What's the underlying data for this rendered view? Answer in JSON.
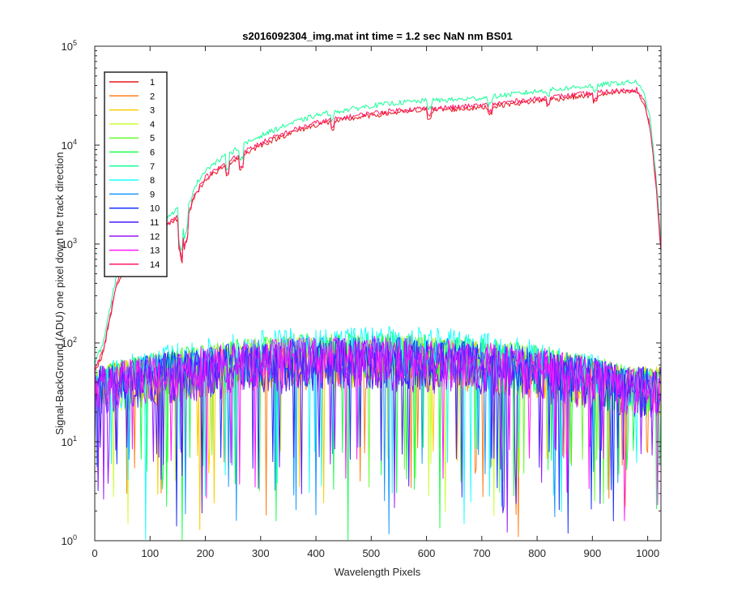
{
  "chart_data": {
    "type": "line",
    "title": "s2016092304_img.mat int time = 1.2 sec  NaN nm BS01",
    "xlabel": "Wavelength Pixels",
    "ylabel": "Signal-BackGround (ADU) one pixel down the track direction",
    "xlim": [
      0,
      1024
    ],
    "ylim": [
      1,
      100000
    ],
    "yscale": "log",
    "x_ticks": [
      0,
      100,
      200,
      300,
      400,
      500,
      600,
      700,
      800,
      900,
      1000
    ],
    "y_ticks": [
      {
        "value": 1,
        "base": "10",
        "exp": "0"
      },
      {
        "value": 10,
        "base": "10",
        "exp": "1"
      },
      {
        "value": 100,
        "base": "10",
        "exp": "2"
      },
      {
        "value": 1000,
        "base": "10",
        "exp": "3"
      },
      {
        "value": 10000,
        "base": "10",
        "exp": "4"
      },
      {
        "value": 100000,
        "base": "10",
        "exp": "5"
      }
    ],
    "grid": false,
    "legend_position": "top-left",
    "series": [
      {
        "name": "1",
        "color": "#e6191a",
        "level": "high",
        "scale": 1.0
      },
      {
        "name": "2",
        "color": "#ff7f1a",
        "level": "low",
        "peak": 80
      },
      {
        "name": "3",
        "color": "#ffcc00",
        "level": "low",
        "peak": 85
      },
      {
        "name": "4",
        "color": "#ccff33",
        "level": "low",
        "peak": 90
      },
      {
        "name": "5",
        "color": "#66ff33",
        "level": "low",
        "peak": 95
      },
      {
        "name": "6",
        "color": "#1aff4d",
        "level": "low",
        "peak": 100
      },
      {
        "name": "7",
        "color": "#1aff99",
        "level": "high",
        "scale": 1.25
      },
      {
        "name": "8",
        "color": "#1affff",
        "level": "low",
        "peak": 120
      },
      {
        "name": "9",
        "color": "#1a99ff",
        "level": "low",
        "peak": 90
      },
      {
        "name": "10",
        "color": "#1a33ff",
        "level": "low",
        "peak": 85
      },
      {
        "name": "11",
        "color": "#4d1aff",
        "level": "low",
        "peak": 80
      },
      {
        "name": "12",
        "color": "#991aff",
        "level": "low",
        "peak": 75
      },
      {
        "name": "13",
        "color": "#ff1aff",
        "level": "low",
        "peak": 90
      },
      {
        "name": "14",
        "color": "#ff1a66",
        "level": "high",
        "scale": 1.05
      }
    ],
    "high_profile": {
      "x": [
        0,
        15,
        25,
        40,
        60,
        80,
        100,
        130,
        150,
        160,
        170,
        180,
        200,
        250,
        300,
        350,
        400,
        450,
        500,
        550,
        600,
        650,
        700,
        750,
        800,
        850,
        900,
        950,
        980,
        995,
        1005,
        1015,
        1024
      ],
      "y": [
        50,
        80,
        150,
        400,
        600,
        800,
        1000,
        1500,
        1800,
        1100,
        2000,
        3000,
        4500,
        7000,
        10000,
        13000,
        16000,
        18000,
        20000,
        21500,
        22500,
        23000,
        24000,
        26000,
        28000,
        30000,
        32000,
        34000,
        35000,
        25000,
        14000,
        4000,
        800
      ]
    }
  }
}
